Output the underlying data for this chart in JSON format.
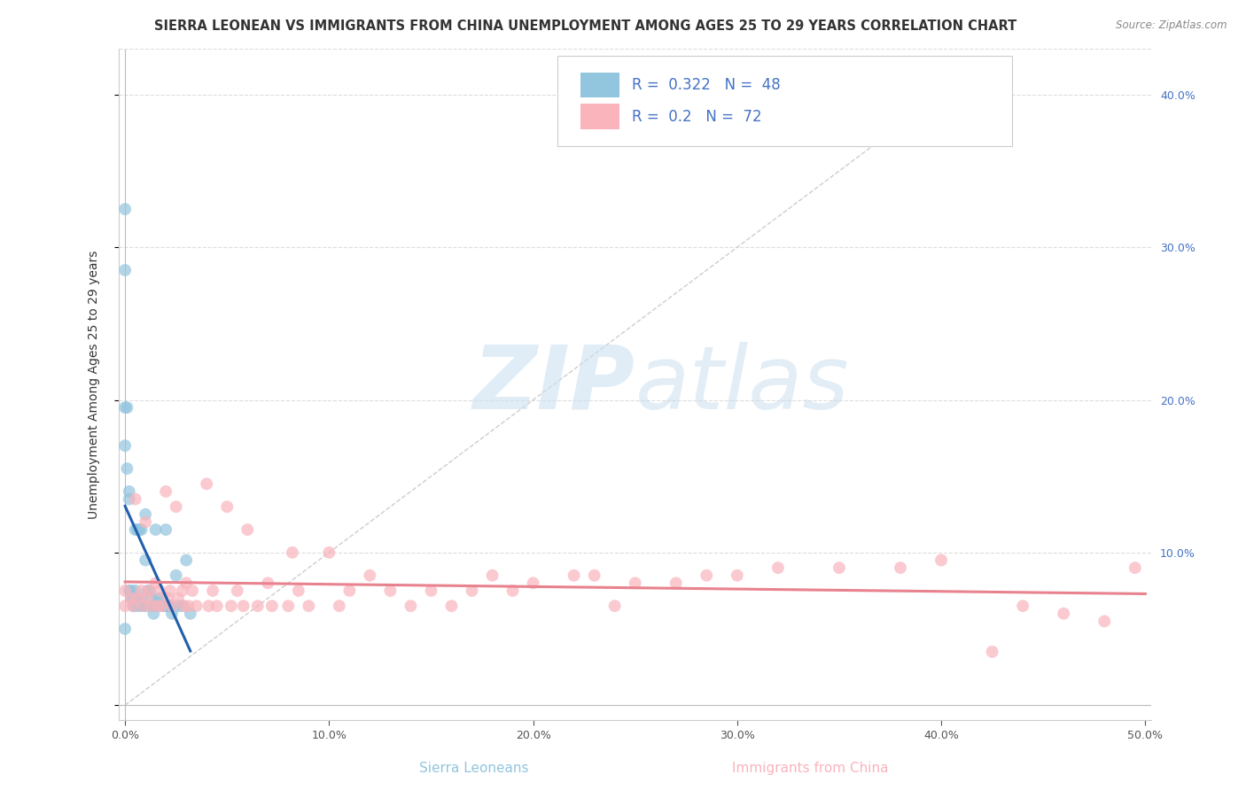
{
  "title": "SIERRA LEONEAN VS IMMIGRANTS FROM CHINA UNEMPLOYMENT AMONG AGES 25 TO 29 YEARS CORRELATION CHART",
  "source": "Source: ZipAtlas.com",
  "ylabel": "Unemployment Among Ages 25 to 29 years",
  "xlabel_sierra": "Sierra Leoneans",
  "xlabel_china": "Immigrants from China",
  "xlim": [
    -0.003,
    0.503
  ],
  "ylim": [
    -0.01,
    0.43
  ],
  "xticks": [
    0.0,
    0.1,
    0.2,
    0.3,
    0.4,
    0.5
  ],
  "xticklabels": [
    "0.0%",
    "10.0%",
    "20.0%",
    "30.0%",
    "40.0%",
    "50.0%"
  ],
  "yticks": [
    0.0,
    0.1,
    0.2,
    0.3,
    0.4
  ],
  "yticklabels_right": [
    "",
    "10.0%",
    "20.0%",
    "30.0%",
    "40.0%"
  ],
  "R_sierra": 0.322,
  "N_sierra": 48,
  "R_china": 0.2,
  "N_china": 72,
  "sierra_color": "#92C5DE",
  "china_color": "#F9B4BC",
  "trendline_sierra_color": "#1F5FAD",
  "trendline_china_color": "#E8828F",
  "diag_line_color": "#C8C8C8",
  "background_color": "#FFFFFF",
  "grid_color": "#DDDDDD",
  "title_fontsize": 10.5,
  "axis_fontsize": 10,
  "tick_fontsize": 9,
  "legend_fontsize": 12,
  "sierra_x": [
    0.0,
    0.0,
    0.0,
    0.0,
    0.0,
    0.001,
    0.001,
    0.002,
    0.002,
    0.002,
    0.003,
    0.003,
    0.004,
    0.004,
    0.005,
    0.005,
    0.005,
    0.006,
    0.006,
    0.007,
    0.007,
    0.008,
    0.008,
    0.009,
    0.01,
    0.01,
    0.01,
    0.011,
    0.012,
    0.013,
    0.013,
    0.014,
    0.015,
    0.015,
    0.016,
    0.017,
    0.018,
    0.019,
    0.02,
    0.02,
    0.021,
    0.022,
    0.023,
    0.025,
    0.026,
    0.028,
    0.03,
    0.032
  ],
  "sierra_y": [
    0.325,
    0.195,
    0.17,
    0.285,
    0.05,
    0.195,
    0.155,
    0.14,
    0.135,
    0.075,
    0.075,
    0.07,
    0.07,
    0.065,
    0.115,
    0.075,
    0.065,
    0.115,
    0.07,
    0.115,
    0.065,
    0.115,
    0.07,
    0.065,
    0.125,
    0.095,
    0.065,
    0.075,
    0.075,
    0.07,
    0.065,
    0.06,
    0.115,
    0.065,
    0.07,
    0.065,
    0.07,
    0.065,
    0.115,
    0.065,
    0.065,
    0.065,
    0.06,
    0.085,
    0.065,
    0.065,
    0.095,
    0.06
  ],
  "china_x": [
    0.0,
    0.0,
    0.003,
    0.004,
    0.005,
    0.006,
    0.008,
    0.009,
    0.01,
    0.011,
    0.012,
    0.013,
    0.015,
    0.016,
    0.017,
    0.018,
    0.02,
    0.021,
    0.022,
    0.023,
    0.025,
    0.026,
    0.028,
    0.029,
    0.03,
    0.031,
    0.033,
    0.035,
    0.04,
    0.041,
    0.043,
    0.045,
    0.05,
    0.052,
    0.055,
    0.058,
    0.06,
    0.065,
    0.07,
    0.072,
    0.08,
    0.082,
    0.085,
    0.09,
    0.1,
    0.105,
    0.11,
    0.12,
    0.13,
    0.14,
    0.15,
    0.16,
    0.17,
    0.18,
    0.19,
    0.2,
    0.22,
    0.23,
    0.24,
    0.25,
    0.27,
    0.285,
    0.3,
    0.32,
    0.35,
    0.38,
    0.4,
    0.425,
    0.44,
    0.46,
    0.48,
    0.495
  ],
  "china_y": [
    0.075,
    0.065,
    0.07,
    0.065,
    0.135,
    0.07,
    0.075,
    0.065,
    0.12,
    0.07,
    0.075,
    0.065,
    0.08,
    0.065,
    0.075,
    0.065,
    0.14,
    0.07,
    0.075,
    0.065,
    0.13,
    0.07,
    0.075,
    0.065,
    0.08,
    0.065,
    0.075,
    0.065,
    0.145,
    0.065,
    0.075,
    0.065,
    0.13,
    0.065,
    0.075,
    0.065,
    0.115,
    0.065,
    0.08,
    0.065,
    0.065,
    0.1,
    0.075,
    0.065,
    0.1,
    0.065,
    0.075,
    0.085,
    0.075,
    0.065,
    0.075,
    0.065,
    0.075,
    0.085,
    0.075,
    0.08,
    0.085,
    0.085,
    0.065,
    0.08,
    0.08,
    0.085,
    0.085,
    0.09,
    0.09,
    0.09,
    0.095,
    0.035,
    0.065,
    0.06,
    0.055,
    0.09
  ]
}
